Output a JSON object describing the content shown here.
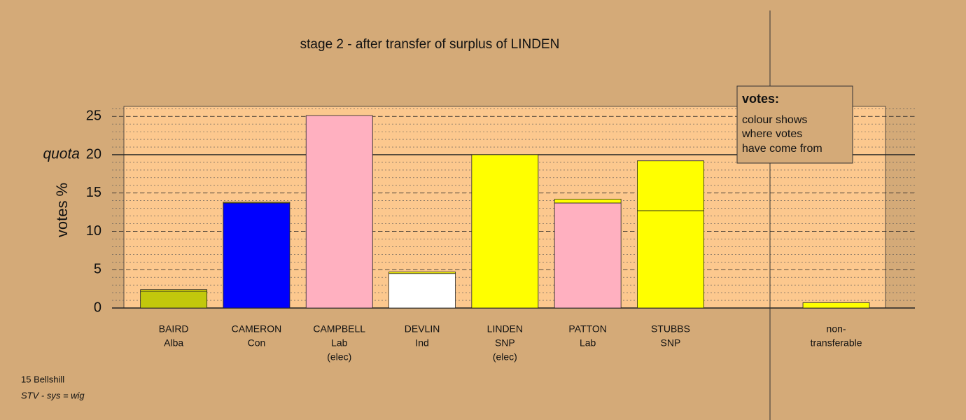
{
  "chart_data": {
    "type": "stacked-bar",
    "title": "stage 2 - after transfer of surplus of LINDEN",
    "y_label": "votes %",
    "quota_label": "quota",
    "quota": 20,
    "labels": [
      [
        "BAIRD",
        "Alba"
      ],
      [
        "CAMERON",
        "Con"
      ],
      [
        "CAMPBELL",
        "Lab",
        "(elec)"
      ],
      [
        "DEVLIN",
        "Ind"
      ],
      [
        "LINDEN",
        "SNP",
        "(elec)"
      ],
      [
        "PATTON",
        "Lab"
      ],
      [
        "STUBBS",
        "SNP"
      ],
      null,
      [
        "non-",
        "transferable"
      ]
    ],
    "series": [
      {
        "colors": [
          "#c2c80c",
          "#0000ff",
          "#ffb0c0",
          "#ffffff",
          "#ffff00",
          "#ffb0c0",
          "#ffff00",
          null,
          "#ffff00"
        ],
        "values": [
          2.2,
          13.7,
          25.1,
          4.5,
          20,
          13.7,
          12.7,
          null,
          0
        ]
      },
      {
        "color": "#ffff00",
        "values": [
          0.2,
          0.1,
          0,
          0.2,
          0,
          0.5,
          6.5,
          null,
          0.7
        ]
      }
    ],
    "ylim": [
      0,
      26.3
    ],
    "yticks": [
      0,
      5,
      10,
      15,
      20,
      25
    ],
    "minor_grid": 1,
    "note": {
      "title": "votes:",
      "lines": [
        "colour shows",
        "where votes",
        "have come from"
      ]
    },
    "footer": [
      "15 Bellshill",
      "STV - sys = wig"
    ]
  }
}
